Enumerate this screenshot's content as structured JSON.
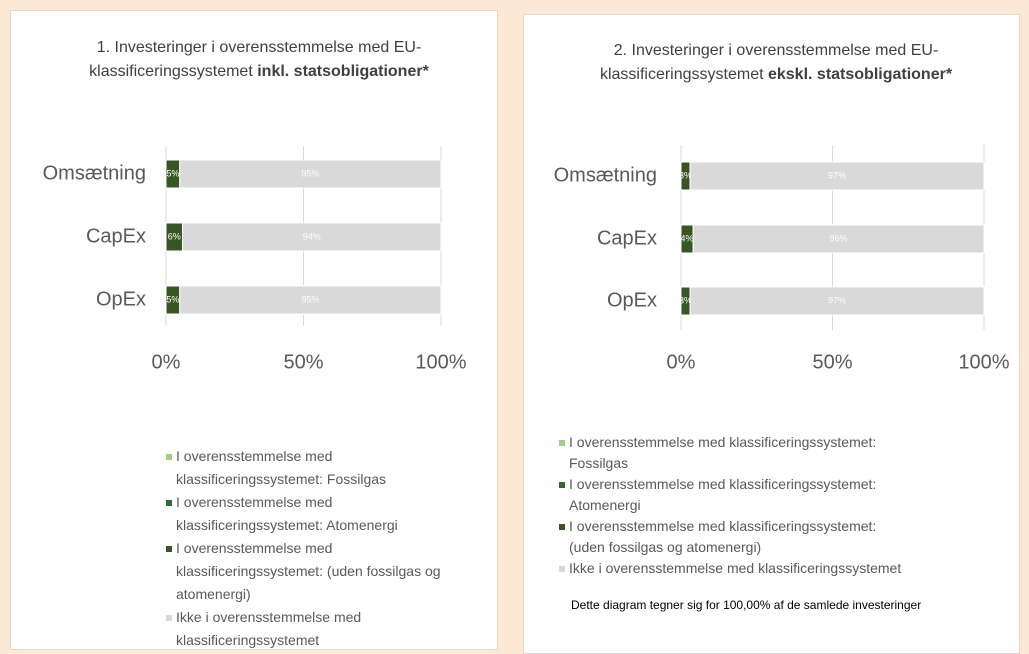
{
  "chart_data": [
    {
      "type": "stacked-bar-horizontal",
      "title": "1. Investeringer i overensstemmelse med EU-klassificeringssystemet ",
      "title_bold": "inkl. statsobligationer*",
      "categories": [
        "Omsætning",
        "CapEx",
        "OpEx"
      ],
      "series": [
        {
          "name": "I overensstemmelse med klassificeringssystemet: Fossilgas",
          "color": "#9bd17f",
          "values": [
            0,
            0,
            0
          ],
          "value_labels": [
            "0%",
            "0%",
            "0%"
          ]
        },
        {
          "name": "I overensstemmelse med klassificeringssystemet: Atomenergi",
          "color": "#2f6b2f",
          "values": [
            0,
            0,
            0
          ],
          "value_labels": [
            "0%",
            "0%",
            "0%"
          ]
        },
        {
          "name": "I overensstemmelse med klassificeringssystemet: (uden fossilgas og atomenergi)",
          "color": "#375623",
          "values": [
            5,
            6,
            5
          ],
          "value_labels": [
            "5%",
            "6%",
            "5%"
          ]
        },
        {
          "name": "Ikke i overensstemmelse med klassificeringssystemet",
          "color": "#d9d9d9",
          "values": [
            95,
            94,
            95
          ],
          "value_labels": [
            "95%",
            "94%",
            "95%"
          ]
        }
      ],
      "xlim": [
        0,
        100
      ],
      "xticks": [
        {
          "value": 0,
          "label": "0%"
        },
        {
          "value": 50,
          "label": "50%"
        },
        {
          "value": 100,
          "label": "100%"
        }
      ],
      "grid": true,
      "legend": "bottom"
    },
    {
      "type": "stacked-bar-horizontal",
      "title": "2. Investeringer i overensstemmelse med EU-klassificeringssystemet ",
      "title_bold": "ekskl. statsobligationer*",
      "categories": [
        "Omsætning",
        "CapEx",
        "OpEx"
      ],
      "series": [
        {
          "name": "I overensstemmelse med klassificeringssystemet: Fossilgas",
          "color": "#9bd17f",
          "values": [
            0,
            0,
            0
          ],
          "value_labels": [
            "0%",
            "0%",
            "0%"
          ]
        },
        {
          "name": "I overensstemmelse med klassificeringssystemet: Atomenergi",
          "color": "#2f6b2f",
          "values": [
            0,
            0,
            0
          ],
          "value_labels": [
            "0%",
            "0%",
            "0%"
          ]
        },
        {
          "name": "I overensstemmelse med klassificeringssystemet: (uden fossilgas og atomenergi)",
          "color": "#375623",
          "values": [
            3,
            4,
            3
          ],
          "value_labels": [
            "3%",
            "4%",
            "3%"
          ]
        },
        {
          "name": "Ikke i overensstemmelse med klassificeringssystemet",
          "color": "#d9d9d9",
          "values": [
            97,
            96,
            97
          ],
          "value_labels": [
            "97%",
            "96%",
            "97%"
          ]
        }
      ],
      "xlim": [
        0,
        100
      ],
      "xticks": [
        {
          "value": 0,
          "label": "0%"
        },
        {
          "value": 50,
          "label": "50%"
        },
        {
          "value": 100,
          "label": "100%"
        }
      ],
      "grid": true,
      "legend": "bottom",
      "footnote": "Dette diagram tegner sig for 100,00% af de samlede investeringer"
    }
  ]
}
